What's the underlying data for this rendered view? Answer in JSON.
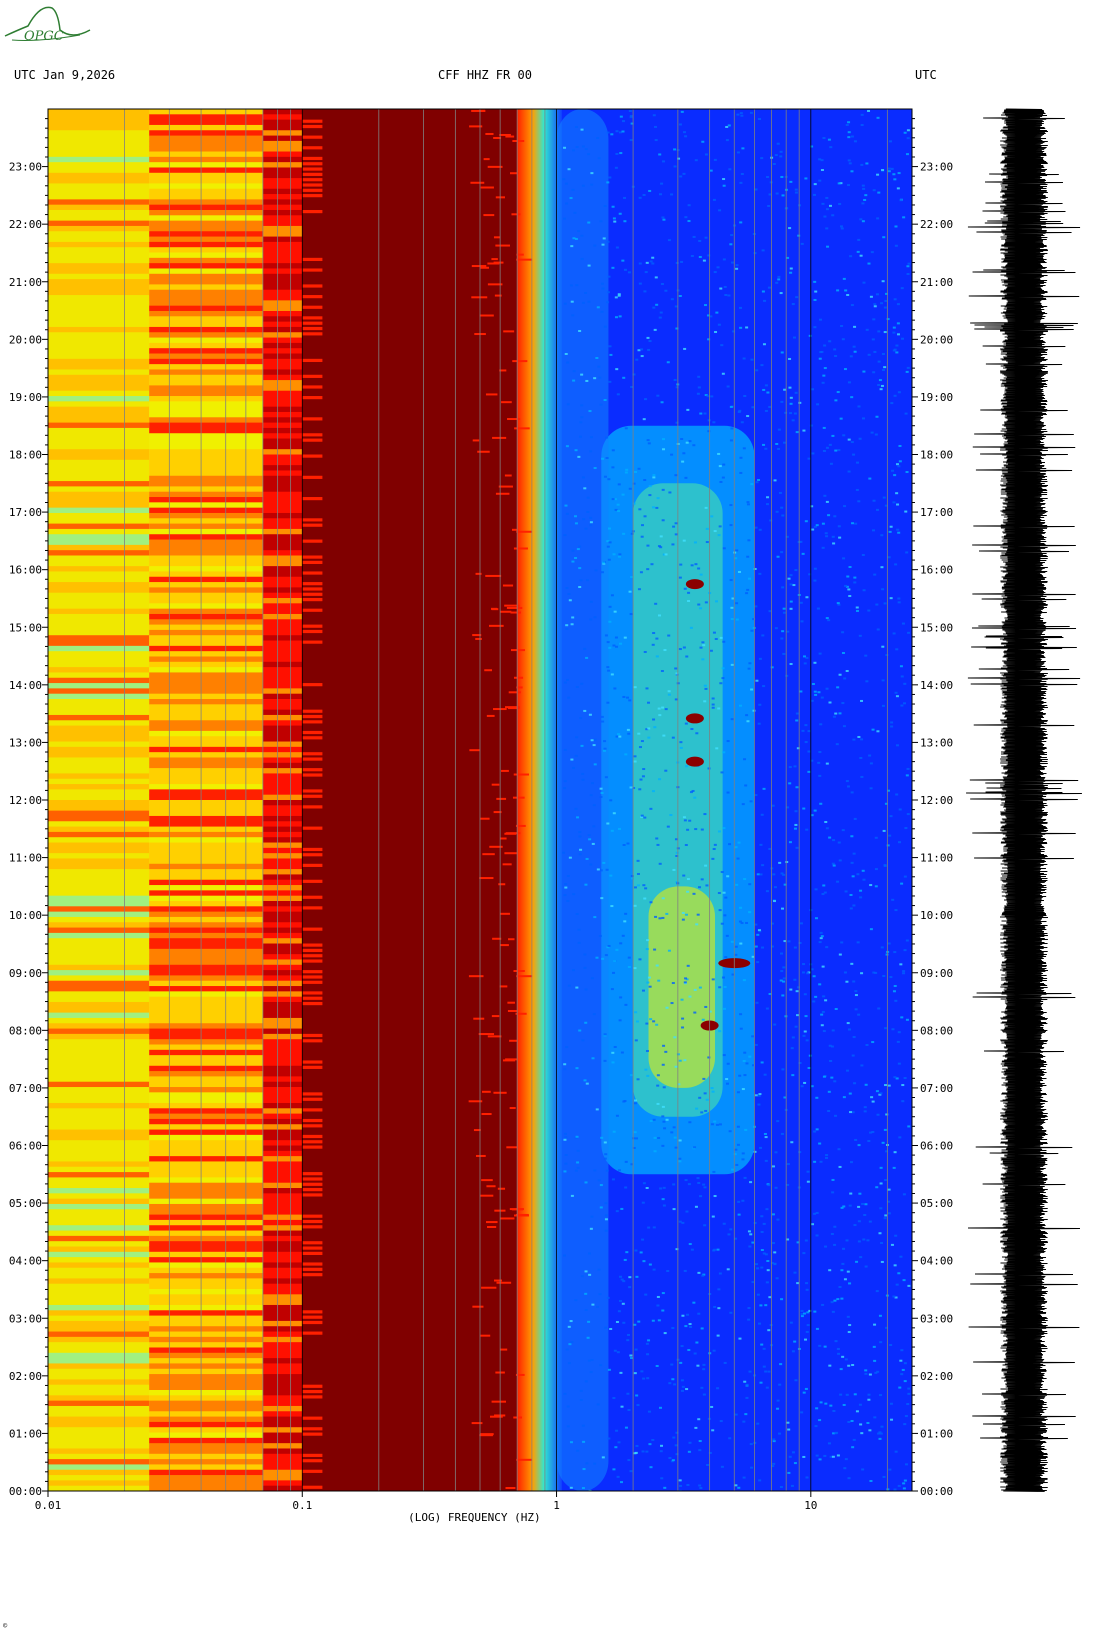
{
  "header": {
    "left": "UTC  Jan 9,2026",
    "center": "CFF HHZ FR 00",
    "right": "UTC"
  },
  "logo": {
    "text": "OPGC"
  },
  "footer": {
    "mark": "©"
  },
  "colors": {
    "background": "#ffffff",
    "low_power": "#0000ff",
    "mid_power": "#00ffff",
    "high_power": "#ffff00",
    "peak_power": "#800000",
    "logo": "#2e7d32"
  },
  "chart_data": {
    "type": "heatmap",
    "title": "CFF HHZ FR 00",
    "xlabel": "(LOG) FREQUENCY (HZ)",
    "ylabel": "",
    "x_scale": "log",
    "xlim": [
      0.01,
      25
    ],
    "x_ticks": [
      {
        "value": 0.01,
        "label": "0.01"
      },
      {
        "value": 0.1,
        "label": "0.1"
      },
      {
        "value": 1,
        "label": "1"
      },
      {
        "value": 10,
        "label": "10"
      }
    ],
    "ylim": [
      "00:00",
      "24:00"
    ],
    "y_ticks": [
      "00:00",
      "01:00",
      "02:00",
      "03:00",
      "04:00",
      "05:00",
      "06:00",
      "07:00",
      "08:00",
      "09:00",
      "10:00",
      "11:00",
      "12:00",
      "13:00",
      "14:00",
      "15:00",
      "16:00",
      "17:00",
      "18:00",
      "19:00",
      "20:00",
      "21:00",
      "22:00",
      "23:00"
    ],
    "colormap": [
      "#0000ff",
      "#00ffff",
      "#ffff00",
      "#ff0000",
      "#800000"
    ],
    "bands": [
      {
        "from_hz": 0.01,
        "to_hz": 0.025,
        "level": "yellow"
      },
      {
        "from_hz": 0.025,
        "to_hz": 0.1,
        "level": "yellow-red"
      },
      {
        "from_hz": 0.1,
        "to_hz": 0.7,
        "level": "saturated"
      },
      {
        "from_hz": 0.7,
        "to_hz": 1,
        "level": "red-to-cyan"
      },
      {
        "from_hz": 1,
        "to_hz": 25,
        "level": "blue-cyan"
      }
    ],
    "events": [
      {
        "time": "15:45",
        "freq_hz": 3.5
      },
      {
        "time": "13:25",
        "freq_hz": 3.5
      },
      {
        "time": "12:40",
        "freq_hz": 3.5
      },
      {
        "time": "09:10",
        "freq_hz": 5.0
      },
      {
        "time": "08:05",
        "freq_hz": 4.0
      }
    ],
    "trace": {
      "label": "seismogram",
      "channel": "HHZ"
    }
  }
}
